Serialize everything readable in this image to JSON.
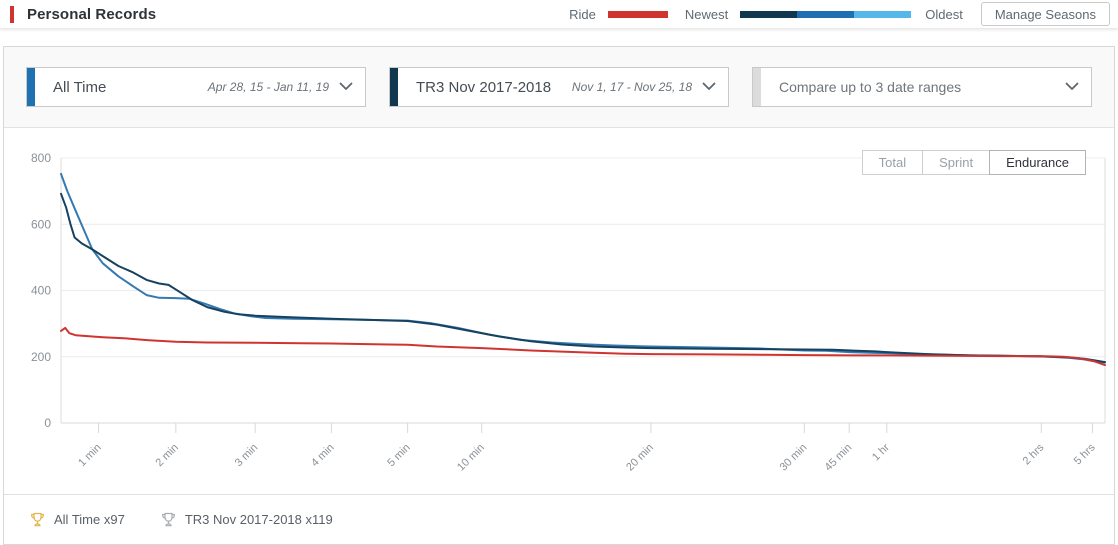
{
  "header": {
    "title": "Personal Records",
    "accent_color": "#cf342f",
    "legend": {
      "ride_label": "Ride",
      "ride_color": "#cf342f",
      "newest_label": "Newest",
      "oldest_label": "Oldest",
      "gradient_colors": [
        "#12384f",
        "#1f6fb2",
        "#56b8e8"
      ]
    },
    "manage_seasons_label": "Manage Seasons"
  },
  "selectors": [
    {
      "title": "All Time",
      "range": "Apr 28, 15 - Jan 11, 19",
      "accent_color": "#1f72b2"
    },
    {
      "title": "TR3 Nov 2017-2018",
      "range": "Nov 1, 17 - Nov 25, 18",
      "accent_color": "#12384f"
    },
    {
      "title": "Compare up to 3 date ranges",
      "range": "",
      "accent_color": "#dcdcdc"
    }
  ],
  "toolbar": {
    "buttons": [
      {
        "label": "Total",
        "active": false
      },
      {
        "label": "Sprint",
        "active": false
      },
      {
        "label": "Endurance",
        "active": true
      }
    ]
  },
  "chart_data": {
    "type": "line",
    "title": "",
    "xlabel": "",
    "ylabel": "",
    "ylim": [
      0,
      800
    ],
    "yticks": [
      0,
      200,
      400,
      600,
      800
    ],
    "grid": true,
    "xticks": [
      {
        "label": "1 min",
        "f": 0.036
      },
      {
        "label": "2 min",
        "f": 0.11
      },
      {
        "label": "3 min",
        "f": 0.186
      },
      {
        "label": "4 min",
        "f": 0.259
      },
      {
        "label": "5 min",
        "f": 0.332
      },
      {
        "label": "10 min",
        "f": 0.403
      },
      {
        "label": "20 min",
        "f": 0.565
      },
      {
        "label": "30 min",
        "f": 0.712
      },
      {
        "label": "45 min",
        "f": 0.755
      },
      {
        "label": "1 hr",
        "f": 0.791
      },
      {
        "label": "2 hrs",
        "f": 0.939
      },
      {
        "label": "5 hrs",
        "f": 0.988
      }
    ],
    "series": [
      {
        "name": "All Time",
        "color": "#3579b1",
        "points": [
          [
            0.0,
            752
          ],
          [
            0.006,
            700
          ],
          [
            0.013,
            648
          ],
          [
            0.021,
            590
          ],
          [
            0.03,
            524
          ],
          [
            0.04,
            482
          ],
          [
            0.055,
            443
          ],
          [
            0.07,
            411
          ],
          [
            0.082,
            386
          ],
          [
            0.094,
            378
          ],
          [
            0.11,
            377
          ],
          [
            0.123,
            375
          ],
          [
            0.138,
            360
          ],
          [
            0.152,
            344
          ],
          [
            0.166,
            331
          ],
          [
            0.182,
            322
          ],
          [
            0.196,
            317
          ],
          [
            0.222,
            315
          ],
          [
            0.259,
            313
          ],
          [
            0.3,
            311
          ],
          [
            0.332,
            309
          ],
          [
            0.355,
            301
          ],
          [
            0.38,
            287
          ],
          [
            0.41,
            267
          ],
          [
            0.44,
            251
          ],
          [
            0.47,
            243
          ],
          [
            0.5,
            238
          ],
          [
            0.53,
            234
          ],
          [
            0.565,
            231
          ],
          [
            0.62,
            228
          ],
          [
            0.67,
            225
          ],
          [
            0.712,
            219
          ],
          [
            0.733,
            218
          ],
          [
            0.755,
            214
          ],
          [
            0.775,
            212
          ],
          [
            0.791,
            211
          ],
          [
            0.83,
            207
          ],
          [
            0.87,
            204
          ],
          [
            0.9,
            203
          ],
          [
            0.939,
            201
          ],
          [
            0.965,
            197
          ],
          [
            0.98,
            192
          ],
          [
            0.99,
            187
          ],
          [
            1.0,
            183
          ]
        ]
      },
      {
        "name": "TR3 Nov 2017-2018",
        "color": "#16425f",
        "points": [
          [
            0.0,
            692
          ],
          [
            0.005,
            650
          ],
          [
            0.009,
            601
          ],
          [
            0.013,
            560
          ],
          [
            0.02,
            542
          ],
          [
            0.03,
            524
          ],
          [
            0.042,
            500
          ],
          [
            0.055,
            474
          ],
          [
            0.068,
            456
          ],
          [
            0.082,
            432
          ],
          [
            0.094,
            421
          ],
          [
            0.103,
            417
          ],
          [
            0.112,
            399
          ],
          [
            0.126,
            371
          ],
          [
            0.14,
            350
          ],
          [
            0.156,
            336
          ],
          [
            0.17,
            328
          ],
          [
            0.186,
            324
          ],
          [
            0.22,
            319
          ],
          [
            0.259,
            315
          ],
          [
            0.3,
            311
          ],
          [
            0.332,
            308
          ],
          [
            0.36,
            297
          ],
          [
            0.39,
            279
          ],
          [
            0.42,
            261
          ],
          [
            0.45,
            247
          ],
          [
            0.48,
            237
          ],
          [
            0.51,
            231
          ],
          [
            0.54,
            228
          ],
          [
            0.565,
            226
          ],
          [
            0.62,
            224
          ],
          [
            0.67,
            223
          ],
          [
            0.712,
            222
          ],
          [
            0.74,
            221
          ],
          [
            0.762,
            218
          ],
          [
            0.78,
            216
          ],
          [
            0.791,
            214
          ],
          [
            0.83,
            208
          ],
          [
            0.87,
            204
          ],
          [
            0.9,
            203
          ],
          [
            0.939,
            201
          ],
          [
            0.965,
            198
          ],
          [
            0.98,
            194
          ],
          [
            0.99,
            189
          ],
          [
            1.0,
            184
          ]
        ]
      },
      {
        "name": "Ride",
        "color": "#cf3430",
        "points": [
          [
            0.0,
            278
          ],
          [
            0.004,
            287
          ],
          [
            0.008,
            271
          ],
          [
            0.014,
            265
          ],
          [
            0.022,
            263
          ],
          [
            0.04,
            259
          ],
          [
            0.06,
            256
          ],
          [
            0.084,
            250
          ],
          [
            0.11,
            245
          ],
          [
            0.14,
            243
          ],
          [
            0.186,
            242
          ],
          [
            0.23,
            241
          ],
          [
            0.259,
            240
          ],
          [
            0.3,
            238
          ],
          [
            0.332,
            236
          ],
          [
            0.36,
            231
          ],
          [
            0.403,
            226
          ],
          [
            0.45,
            219
          ],
          [
            0.5,
            213
          ],
          [
            0.54,
            209
          ],
          [
            0.565,
            208
          ],
          [
            0.62,
            207
          ],
          [
            0.67,
            206
          ],
          [
            0.712,
            205
          ],
          [
            0.76,
            204
          ],
          [
            0.791,
            204
          ],
          [
            0.85,
            203
          ],
          [
            0.9,
            202
          ],
          [
            0.939,
            202
          ],
          [
            0.96,
            200
          ],
          [
            0.975,
            196
          ],
          [
            0.99,
            186
          ],
          [
            1.0,
            175
          ]
        ]
      }
    ],
    "legend_position": "top-right-header"
  },
  "footer": {
    "stats": [
      {
        "label": "All Time x97",
        "trophy_color": "#e0b54c"
      },
      {
        "label": "TR3 Nov 2017-2018 x119",
        "trophy_color": "#a9adb1"
      }
    ]
  }
}
